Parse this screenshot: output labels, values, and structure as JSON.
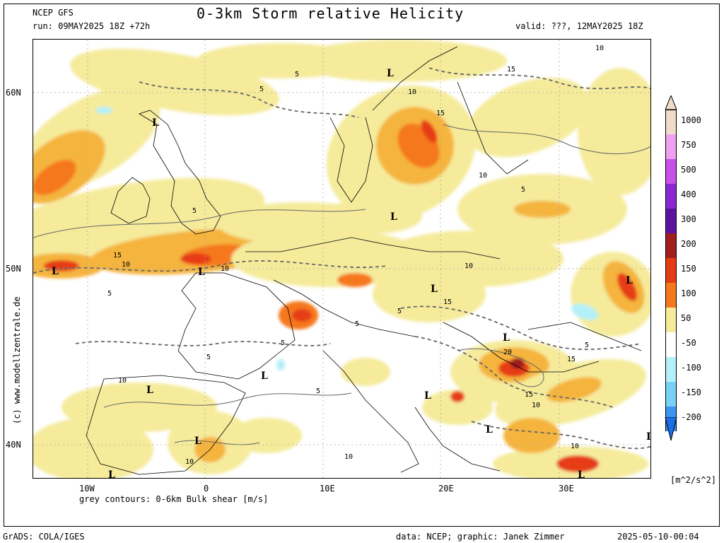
{
  "header": {
    "model": "NCEP GFS",
    "run": "run: 09MAY2025 18Z +72h",
    "title": "0-3km Storm relative Helicity",
    "valid": "valid: ???, 12MAY2025 18Z"
  },
  "map": {
    "lat_labels": [
      "60N",
      "50N",
      "40N"
    ],
    "lon_labels": [
      "10W",
      "0",
      "10E",
      "20E",
      "30E"
    ],
    "contour_note": "grey contours: 0-6km Bulk shear [m/s]",
    "low_marker": "L",
    "contour_values": [
      "5",
      "10",
      "15",
      "20"
    ]
  },
  "legend": {
    "labels": [
      "1000",
      "750",
      "500",
      "400",
      "300",
      "200",
      "150",
      "100",
      "50",
      "-50",
      "-100",
      "-150",
      "-200"
    ],
    "units": "[m^2/s^2]",
    "colors": {
      "c1000": "#f0dcc8",
      "c750": "#f0a0f0",
      "c500": "#c850e6",
      "c400": "#8c28d2",
      "c300": "#5a14a0",
      "c200": "#a01e1e",
      "c150": "#e63c14",
      "c100": "#f5781e",
      "c50": "#f5b43c",
      "cwhite": "#ffffff",
      "cm50": "#b4f0fa",
      "cm100": "#78d2f5",
      "cm150": "#3c96f0",
      "cm200": "#1e6ee6",
      "c50b": "#f5eb9b"
    }
  },
  "footer": {
    "grads": "GrADS: COLA/IGES",
    "credit": "data: NCEP; graphic: Janek Zimmer",
    "timestamp": "2025-05-10-00:04",
    "website": "(c) www.modellzentrale.de"
  }
}
